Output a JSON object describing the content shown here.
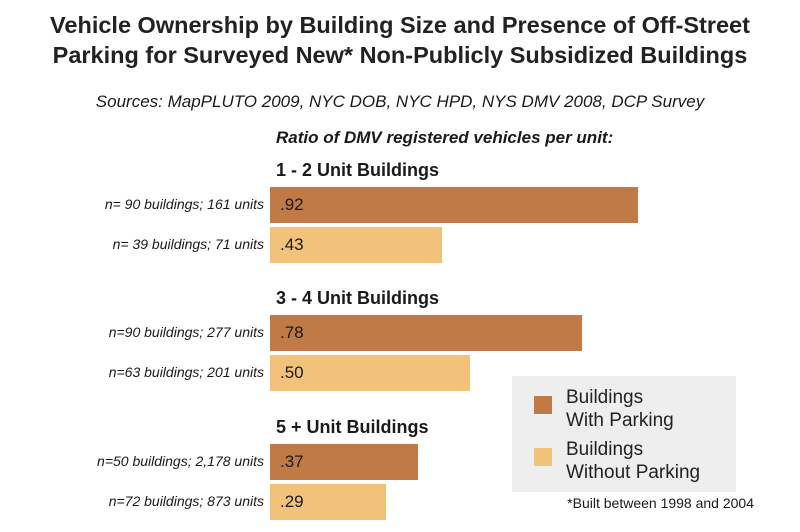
{
  "chart_data": {
    "type": "bar",
    "orientation": "horizontal",
    "title": [
      "Vehicle Ownership by Building Size and Presence of Off-Street",
      "Parking for Surveyed New* Non-Publicly Subsidized Buildings"
    ],
    "subtitle": "Sources: MapPLUTO 2009, NYC DOB, NYC HPD, NYS DMV 2008, DCP Survey",
    "value_label": "Ratio of DMV registered vehicles per unit:",
    "groups": [
      {
        "name": "1 - 2 Unit Buildings",
        "bars": [
          {
            "series": "Buildings With Parking",
            "label": "n= 90 buildings; 161 units",
            "value": 0.92,
            "display": ".92"
          },
          {
            "series": "Buildings Without Parking",
            "label": "n= 39 buildings; 71 units",
            "value": 0.43,
            "display": ".43"
          }
        ]
      },
      {
        "name": "3 - 4  Unit Buildings",
        "bars": [
          {
            "series": "Buildings With Parking",
            "label": "n=90 buildings; 277 units",
            "value": 0.78,
            "display": ".78"
          },
          {
            "series": "Buildings Without Parking",
            "label": "n=63 buildings; 201 units",
            "value": 0.5,
            "display": ".50"
          }
        ]
      },
      {
        "name": "5 + Unit Buildings",
        "bars": [
          {
            "series": "Buildings With Parking",
            "label": "n=50 buildings; 2,178 units",
            "value": 0.37,
            "display": ".37"
          },
          {
            "series": "Buildings Without Parking",
            "label": "n=72 buildings; 873 units",
            "value": 0.29,
            "display": ".29"
          }
        ]
      }
    ],
    "legend": {
      "placement": "bottom-right",
      "entries": [
        {
          "name": "Buildings With Parking",
          "lines": [
            "Buildings",
            "With Parking"
          ],
          "color": "#c07a45"
        },
        {
          "name": "Buildings Without Parking",
          "lines": [
            "Buildings",
            "Without Parking"
          ],
          "color": "#f2c27a"
        }
      ]
    },
    "footnote": "*Built between 1998 and 2004",
    "grid": false
  }
}
